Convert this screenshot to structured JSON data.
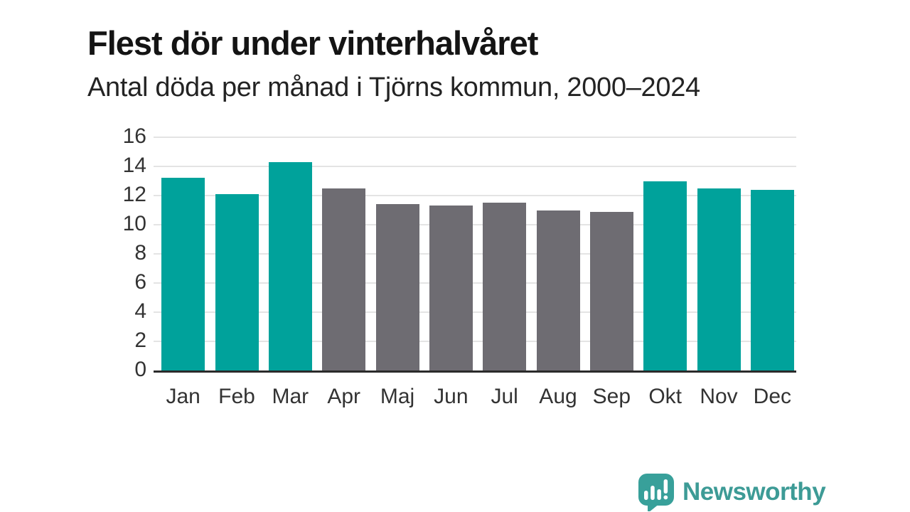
{
  "page": {
    "background": "#ffffff"
  },
  "chart_data": {
    "type": "bar",
    "title": "Flest dör under vinterhalvåret",
    "subtitle": "Antal döda per månad i Tjörns kommun, 2000–2024",
    "categories": [
      "Jan",
      "Feb",
      "Mar",
      "Apr",
      "Maj",
      "Jun",
      "Jul",
      "Aug",
      "Sep",
      "Okt",
      "Nov",
      "Dec"
    ],
    "values": [
      13.2,
      12.1,
      14.3,
      12.5,
      11.4,
      11.3,
      11.5,
      11.0,
      10.9,
      13.0,
      12.5,
      12.4
    ],
    "bar_colors": [
      "#00a29b",
      "#00a29b",
      "#00a29b",
      "#6e6c72",
      "#6e6c72",
      "#6e6c72",
      "#6e6c72",
      "#6e6c72",
      "#6e6c72",
      "#00a29b",
      "#00a29b",
      "#00a29b"
    ],
    "highlight_color": "#00a29b",
    "muted_color": "#6e6c72",
    "ylim": [
      0,
      16
    ],
    "yticks": [
      0,
      2,
      4,
      6,
      8,
      10,
      12,
      14,
      16
    ],
    "grid": true,
    "gridline_color": "#e4e4e4",
    "axis_color": "#2b2b2b",
    "legend": "none"
  },
  "branding": {
    "logo_text": "Newsworthy",
    "logo_text_color": "#3d9b96",
    "logo_bubble_color": "#38a09a",
    "logo_icon": "bar-chart-exclamation-speech-bubble-icon"
  }
}
